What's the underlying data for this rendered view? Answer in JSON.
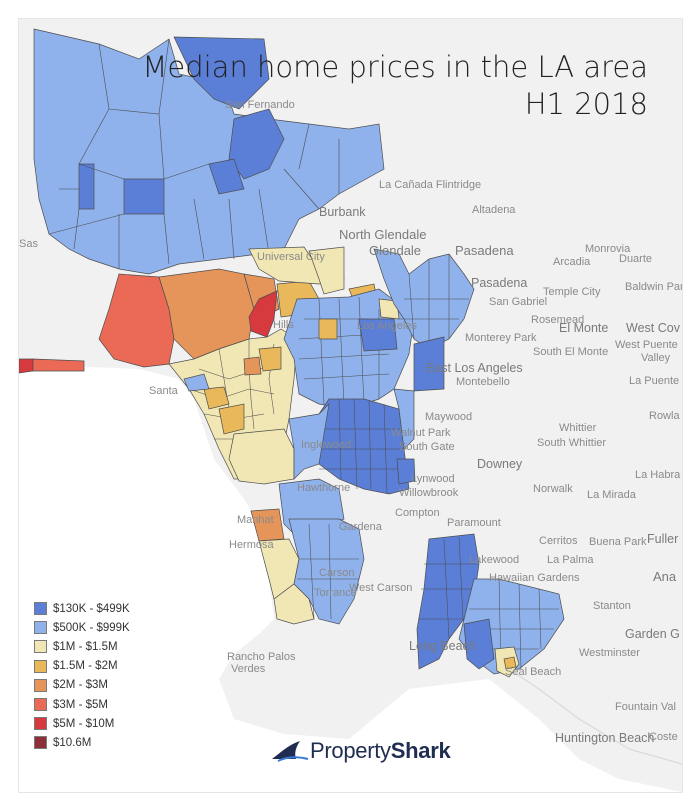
{
  "title": {
    "line1": "Median home prices in the LA area",
    "line2": "H1 2018"
  },
  "legend": [
    {
      "label": "$130K - $499K",
      "color": "#5b7fd6"
    },
    {
      "label": "$500K - $999K",
      "color": "#8fb1ec"
    },
    {
      "label": "$1M - $1.5M",
      "color": "#f1e7b4"
    },
    {
      "label": "$1.5M - $2M",
      "color": "#e8b85a"
    },
    {
      "label": "$2M - $3M",
      "color": "#e6955a"
    },
    {
      "label": "$3M - $5M",
      "color": "#ea6a55"
    },
    {
      "label": "$5M - $10M",
      "color": "#d63a3e"
    },
    {
      "label": "$10.6M",
      "color": "#8e2f37"
    }
  ],
  "places": [
    "La Cañada Flintridge",
    "Burbank",
    "Altadena",
    "North Glendale",
    "Glendale",
    "Pasadena",
    "Monrovia",
    "Duarte",
    "Arcadia",
    "Pasadena",
    "Temple City",
    "San Gabriel",
    "Baldwin Park",
    "Rosemead",
    "El Monte",
    "West Cov",
    "Monterey Park",
    "West Puente",
    "Valley",
    "South El Monte",
    "East Los Angeles",
    "Montebello",
    "La Puente",
    "Maywood",
    "Walnut Park",
    "South Gate",
    "Whittier",
    "South Whittier",
    "Rowla",
    "Lynwood",
    "Willowbrook",
    "Downey",
    "La Habra",
    "Norwalk",
    "La Mirada",
    "Compton",
    "Paramount",
    "Gardena",
    "Manhat",
    "Hermosa",
    "Carson",
    "Lakewood",
    "Cerritos",
    "Buena Park",
    "Fuller",
    "La Palma",
    "Hawaiian Gardens",
    "Ana",
    "Stanton",
    "Garden G",
    "Westminster",
    "Rancho Palos",
    "Verdes",
    "Long Beach",
    "Seal Beach",
    "Fountain Val",
    "Huntington Beach",
    "Coste",
    "Universal City",
    "Hills",
    "Santa",
    "Sas",
    "Inglewood",
    "Hawthorne",
    "Torrance",
    "West Carson",
    "San Fernando",
    "Los Angeles"
  ],
  "brand": {
    "name_regular": "Property",
    "name_bold": "Shark",
    "icon": "shark-fin-logo"
  }
}
